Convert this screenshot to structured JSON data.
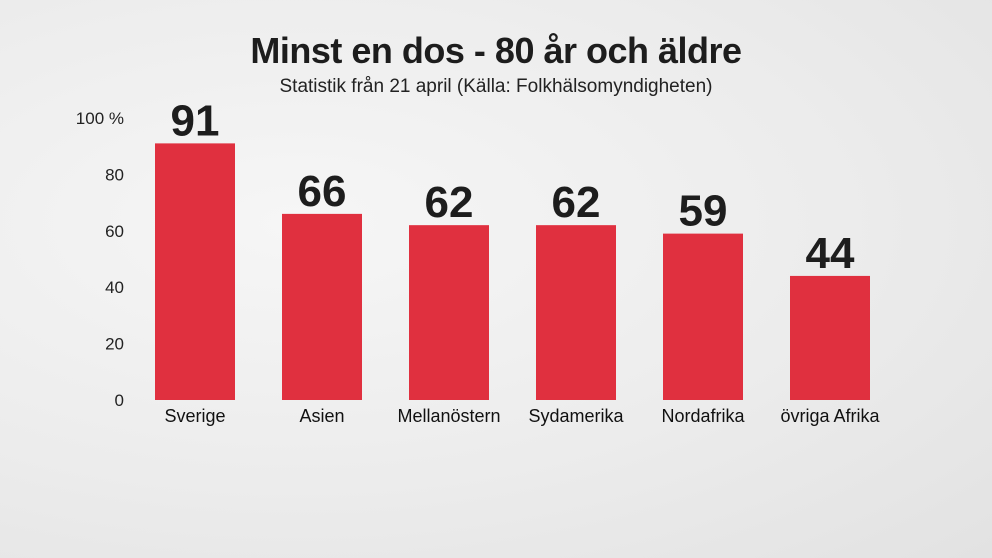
{
  "header": {
    "title": "Minst en dos - 80 år och äldre",
    "subtitle": "Statistik från 21 april (Källa: Folkhälsomyndigheten)"
  },
  "colors": {
    "bar": "#e0303f",
    "text": "#1d1d1d"
  },
  "chart_data": {
    "type": "bar",
    "title": "Minst en dos - 80 år och äldre",
    "subtitle": "Statistik från 21 april (Källa: Folkhälsomyndigheten)",
    "categories": [
      "Sverige",
      "Asien",
      "Mellanöstern",
      "Sydamerika",
      "Nordafrika",
      "övriga Afrika"
    ],
    "values": [
      91,
      66,
      62,
      62,
      59,
      44
    ],
    "yticks": [
      "0",
      "20",
      "40",
      "60",
      "80",
      "100 %"
    ],
    "ylim": [
      0,
      100
    ],
    "grid": false,
    "legend": "none"
  }
}
